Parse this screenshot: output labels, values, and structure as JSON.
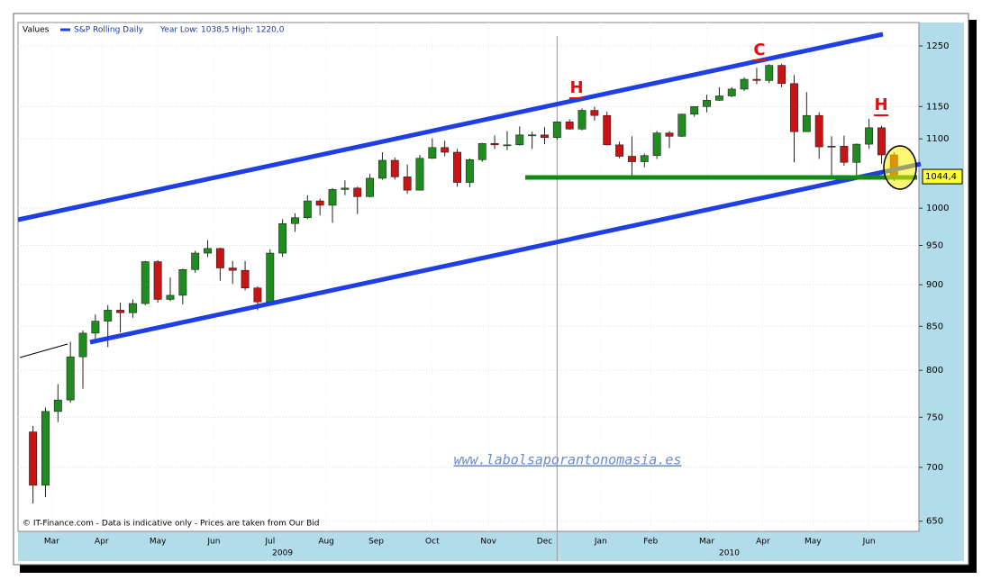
{
  "chart_data": {
    "type": "candlestick",
    "legend_label": "Values",
    "series_name": "S&P Rolling Daily",
    "year_range": "Year Low: 1038,5 High: 1220,0",
    "last_price": {
      "value": 1044.4,
      "label": "1044,4"
    },
    "source_note": "© IT-Finance.com - Data is indicative only - Prices are taken from Our Bid",
    "watermark": "www.labolsaporantonomasia.es",
    "annotations": [
      "H",
      "C",
      "H"
    ],
    "log_scale": true,
    "grid": true,
    "up_color": "#1e8c1e",
    "down_color": "#c81414",
    "ylim": [
      641,
      1291
    ],
    "yticks": [
      650,
      700,
      750,
      800,
      850,
      900,
      950,
      1000,
      1100,
      1150,
      1250
    ],
    "xlim": [
      -1.2,
      71
    ],
    "xticks": [
      {
        "value": 1.5,
        "label": "Mar"
      },
      {
        "value": 5.5,
        "label": "Apr"
      },
      {
        "value": 10,
        "label": "May"
      },
      {
        "value": 14.5,
        "label": "Jun"
      },
      {
        "value": 19,
        "label": "Jul"
      },
      {
        "value": 23.5,
        "label": "Aug"
      },
      {
        "value": 27.5,
        "label": "Sep"
      },
      {
        "value": 32,
        "label": "Oct"
      },
      {
        "value": 36.5,
        "label": "Nov"
      },
      {
        "value": 41,
        "label": "Dec"
      },
      {
        "value": 45.5,
        "label": "Jan"
      },
      {
        "value": 49.5,
        "label": "Feb"
      },
      {
        "value": 54,
        "label": "Mar"
      },
      {
        "value": 58.5,
        "label": "Apr"
      },
      {
        "value": 62.5,
        "label": "May"
      },
      {
        "value": 67,
        "label": "Jun"
      }
    ],
    "year_ticks": [
      {
        "value": 20,
        "label": "2009"
      },
      {
        "value": 55.8,
        "label": "2010"
      }
    ],
    "year_separator": 42,
    "candles": [
      [
        735,
        741,
        666,
        683
      ],
      [
        683,
        760,
        672,
        756
      ],
      [
        756,
        785,
        745,
        768
      ],
      [
        768,
        832,
        765,
        815
      ],
      [
        815,
        845,
        780,
        842
      ],
      [
        842,
        864,
        830,
        856
      ],
      [
        856,
        875,
        826,
        869
      ],
      [
        869,
        878,
        843,
        866
      ],
      [
        866,
        882,
        860,
        877
      ],
      [
        877,
        930,
        875,
        929
      ],
      [
        929,
        931,
        878,
        882
      ],
      [
        882,
        909,
        880,
        887
      ],
      [
        887,
        920,
        876,
        919
      ],
      [
        919,
        943,
        915,
        940
      ],
      [
        940,
        957,
        935,
        946
      ],
      [
        946,
        947,
        905,
        921
      ],
      [
        921,
        930,
        901,
        918
      ],
      [
        918,
        930,
        893,
        896
      ],
      [
        896,
        898,
        869,
        879
      ],
      [
        879,
        945,
        875,
        940
      ],
      [
        940,
        985,
        935,
        979
      ],
      [
        979,
        993,
        968,
        987
      ],
      [
        987,
        1018,
        985,
        1010
      ],
      [
        1010,
        1013,
        990,
        1004
      ],
      [
        1004,
        1028,
        980,
        1026
      ],
      [
        1026,
        1039,
        1018,
        1028
      ],
      [
        1028,
        1030,
        992,
        1016
      ],
      [
        1016,
        1048,
        1015,
        1042
      ],
      [
        1042,
        1080,
        1040,
        1068
      ],
      [
        1068,
        1072,
        1040,
        1044
      ],
      [
        1044,
        1062,
        1020,
        1025
      ],
      [
        1025,
        1076,
        1025,
        1071
      ],
      [
        1071,
        1101,
        1070,
        1087
      ],
      [
        1087,
        1097,
        1074,
        1080
      ],
      [
        1080,
        1085,
        1030,
        1036
      ],
      [
        1036,
        1071,
        1029,
        1069
      ],
      [
        1069,
        1094,
        1066,
        1093
      ],
      [
        1093,
        1105,
        1085,
        1091
      ],
      [
        1091,
        1112,
        1083,
        1091
      ],
      [
        1091,
        1119,
        1090,
        1106
      ],
      [
        1106,
        1111,
        1085,
        1106
      ],
      [
        1106,
        1118,
        1092,
        1102
      ],
      [
        1102,
        1127,
        1099,
        1126
      ],
      [
        1126,
        1130,
        1114,
        1115
      ],
      [
        1115,
        1147,
        1113,
        1144
      ],
      [
        1144,
        1150,
        1128,
        1136
      ],
      [
        1136,
        1142,
        1090,
        1091
      ],
      [
        1091,
        1096,
        1071,
        1074
      ],
      [
        1074,
        1104,
        1044,
        1066
      ],
      [
        1066,
        1078,
        1058,
        1075
      ],
      [
        1075,
        1112,
        1070,
        1109
      ],
      [
        1109,
        1112,
        1086,
        1104
      ],
      [
        1104,
        1139,
        1103,
        1138
      ],
      [
        1138,
        1150,
        1134,
        1150
      ],
      [
        1150,
        1169,
        1141,
        1160
      ],
      [
        1160,
        1181,
        1159,
        1167
      ],
      [
        1167,
        1181,
        1165,
        1178
      ],
      [
        1178,
        1197,
        1175,
        1194
      ],
      [
        1194,
        1213,
        1186,
        1192
      ],
      [
        1192,
        1219,
        1188,
        1217
      ],
      [
        1217,
        1220,
        1181,
        1187
      ],
      [
        1187,
        1201,
        1065,
        1111
      ],
      [
        1111,
        1173,
        1111,
        1136
      ],
      [
        1136,
        1141,
        1070,
        1088
      ],
      [
        1088,
        1104,
        1040,
        1089
      ],
      [
        1089,
        1105,
        1060,
        1065
      ],
      [
        1065,
        1093,
        1042,
        1092
      ],
      [
        1092,
        1131,
        1085,
        1117
      ],
      [
        1117,
        1120,
        1063,
        1076
      ],
      [
        1076,
        1080,
        1038,
        1044
      ]
    ]
  }
}
